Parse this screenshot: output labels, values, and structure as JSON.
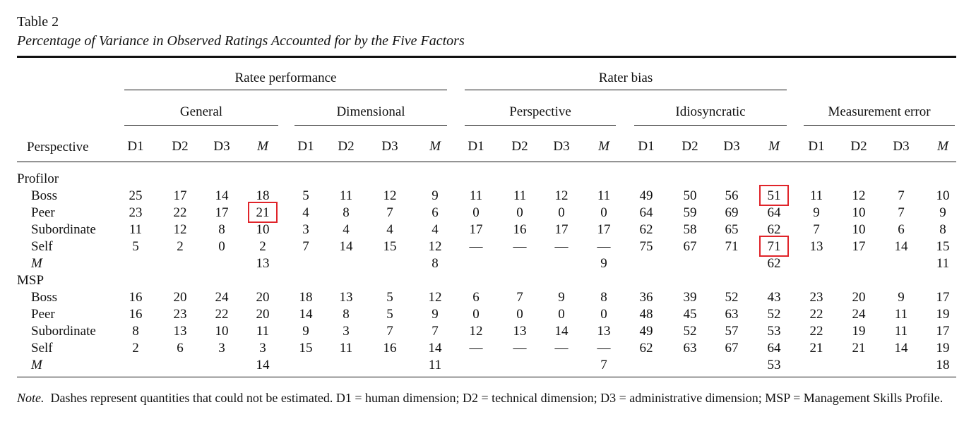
{
  "table": {
    "label": "Table 2",
    "title": "Percentage of Variance in Observed Ratings Accounted for by the Five Factors"
  },
  "headers": {
    "group_ratee": "Ratee performance",
    "group_rater": "Rater bias",
    "sub_general": "General",
    "sub_dimensional": "Dimensional",
    "sub_perspective": "Perspective",
    "sub_idiosyncratic": "Idiosyncratic",
    "sub_measurement": "Measurement error",
    "stub": "Perspective",
    "col_d1": "D1",
    "col_d2": "D2",
    "col_d3": "D3",
    "col_m": "M"
  },
  "sections": [
    {
      "name": "Profilor",
      "rows": [
        {
          "label": "Boss",
          "values": [
            "25",
            "17",
            "14",
            "18",
            "5",
            "11",
            "12",
            "9",
            "11",
            "11",
            "12",
            "11",
            "49",
            "50",
            "56",
            "51",
            "11",
            "12",
            "7",
            "10"
          ]
        },
        {
          "label": "Peer",
          "values": [
            "23",
            "22",
            "17",
            "21",
            "4",
            "8",
            "7",
            "6",
            "0",
            "0",
            "0",
            "0",
            "64",
            "59",
            "69",
            "64",
            "9",
            "10",
            "7",
            "9"
          ]
        },
        {
          "label": "Subordinate",
          "values": [
            "11",
            "12",
            "8",
            "10",
            "3",
            "4",
            "4",
            "4",
            "17",
            "16",
            "17",
            "17",
            "62",
            "58",
            "65",
            "62",
            "7",
            "10",
            "6",
            "8"
          ]
        },
        {
          "label": "Self",
          "values": [
            "5",
            "2",
            "0",
            "2",
            "7",
            "14",
            "15",
            "12",
            "—",
            "—",
            "—",
            "—",
            "75",
            "67",
            "71",
            "71",
            "13",
            "17",
            "14",
            "15"
          ]
        },
        {
          "label": "M",
          "values": [
            "",
            "",
            "",
            "13",
            "",
            "",
            "",
            "8",
            "",
            "",
            "",
            "9",
            "",
            "",
            "",
            "62",
            "",
            "",
            "",
            "11"
          ]
        }
      ]
    },
    {
      "name": "MSP",
      "rows": [
        {
          "label": "Boss",
          "values": [
            "16",
            "20",
            "24",
            "20",
            "18",
            "13",
            "5",
            "12",
            "6",
            "7",
            "9",
            "8",
            "36",
            "39",
            "52",
            "43",
            "23",
            "20",
            "9",
            "17"
          ]
        },
        {
          "label": "Peer",
          "values": [
            "16",
            "23",
            "22",
            "20",
            "14",
            "8",
            "5",
            "9",
            "0",
            "0",
            "0",
            "0",
            "48",
            "45",
            "63",
            "52",
            "22",
            "24",
            "11",
            "19"
          ]
        },
        {
          "label": "Subordinate",
          "values": [
            "8",
            "13",
            "10",
            "11",
            "9",
            "3",
            "7",
            "7",
            "12",
            "13",
            "14",
            "13",
            "49",
            "52",
            "57",
            "53",
            "22",
            "19",
            "11",
            "17"
          ]
        },
        {
          "label": "Self",
          "values": [
            "2",
            "6",
            "3",
            "3",
            "15",
            "11",
            "16",
            "14",
            "—",
            "—",
            "—",
            "—",
            "62",
            "63",
            "67",
            "64",
            "21",
            "21",
            "14",
            "19"
          ]
        },
        {
          "label": "M",
          "values": [
            "",
            "",
            "",
            "14",
            "",
            "",
            "",
            "11",
            "",
            "",
            "",
            "7",
            "",
            "",
            "",
            "53",
            "",
            "",
            "",
            "18"
          ]
        }
      ]
    }
  ],
  "highlights": [
    "Profilor.Peer.General.M",
    "Profilor.Boss.Idiosyncratic.M",
    "Profilor.Self.Idiosyncratic.M"
  ],
  "highlight_color": "#e0242a",
  "note": {
    "label": "Note.",
    "text": "Dashes represent quantities that could not be estimated. D1 = human dimension; D2 = technical dimension; D3 = administrative dimension; MSP = Management Skills Profile."
  }
}
